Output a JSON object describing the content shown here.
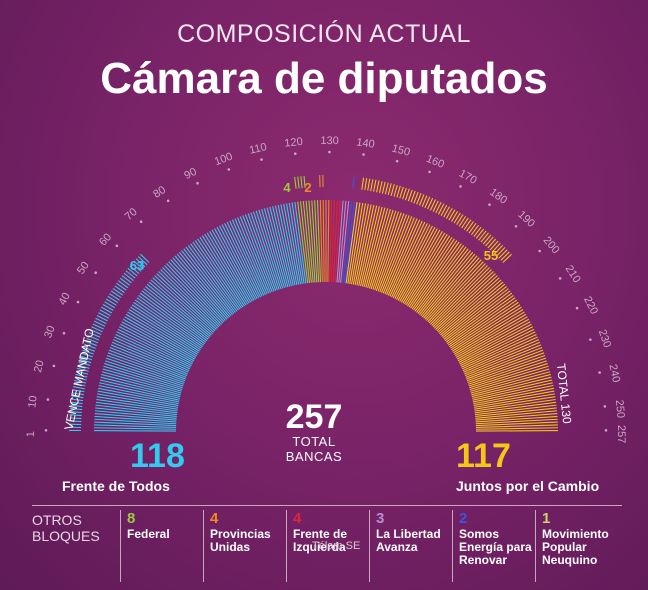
{
  "header": {
    "subtitle": "COMPOSICIÓN ACTUAL",
    "title": "Cámara de diputados"
  },
  "total": {
    "value": "257",
    "label_line1": "TOTAL",
    "label_line2": "BANCAS"
  },
  "main_blocs": {
    "left": {
      "value": "118",
      "name": "Frente de Todos",
      "color": "#33c9f0"
    },
    "right": {
      "value": "117",
      "name": "Juntos  por el Cambio",
      "color": "#f5c518"
    }
  },
  "arc_labels": {
    "left_axis": "VENCE MANDATO",
    "right_axis": "TOTAL 130",
    "left_expiring": "63",
    "right_expiring": "55",
    "federal_expiring": "4",
    "provincias_expiring": "2"
  },
  "legend": {
    "otros_label": "OTROS\nBLOQUES",
    "items": [
      {
        "value": "8",
        "name": "Federal",
        "color": "#9ccc3c"
      },
      {
        "value": "4",
        "name": "Provincias Unidas",
        "color": "#f08a24"
      },
      {
        "value": "4",
        "name": "Frente de Izquierda",
        "color": "#e0243a"
      },
      {
        "value": "3",
        "name": "La Libertad Avanza",
        "color": "#b58fd6"
      },
      {
        "value": "2",
        "name": "Somos Energía para Renovar",
        "color": "#3a55e0"
      },
      {
        "value": "1",
        "name": "Movimiento Popular Neuquino",
        "color": "#c9d66a"
      }
    ]
  },
  "watermark": "Télam SE",
  "chart_data": {
    "type": "bar",
    "title": "Cámara de diputados",
    "total_seats": 257,
    "scale_ticks": [
      1,
      10,
      20,
      30,
      40,
      50,
      60,
      70,
      80,
      90,
      100,
      110,
      120,
      130,
      140,
      150,
      160,
      170,
      180,
      190,
      200,
      210,
      220,
      230,
      240,
      250,
      257
    ],
    "series": [
      {
        "name": "Frente de Todos",
        "seats": 118,
        "expiring": 63,
        "color": "#33c9f0"
      },
      {
        "name": "Federal",
        "seats": 8,
        "expiring": 4,
        "color": "#9ccc3c"
      },
      {
        "name": "Provincias Unidas",
        "seats": 4,
        "expiring": 2,
        "color": "#f08a24"
      },
      {
        "name": "Frente de Izquierda",
        "seats": 4,
        "expiring": 0,
        "color": "#e0243a"
      },
      {
        "name": "La Libertad Avanza",
        "seats": 3,
        "expiring": 0,
        "color": "#b58fd6"
      },
      {
        "name": "Somos Energía para Renovar",
        "seats": 2,
        "expiring": 1,
        "color": "#3a55e0"
      },
      {
        "name": "Movimiento Popular Neuquino",
        "seats": 1,
        "expiring": 0,
        "color": "#c9d66a"
      },
      {
        "name": "Juntos  por el Cambio",
        "seats": 117,
        "expiring": 55,
        "color": "#f5c518"
      }
    ]
  }
}
